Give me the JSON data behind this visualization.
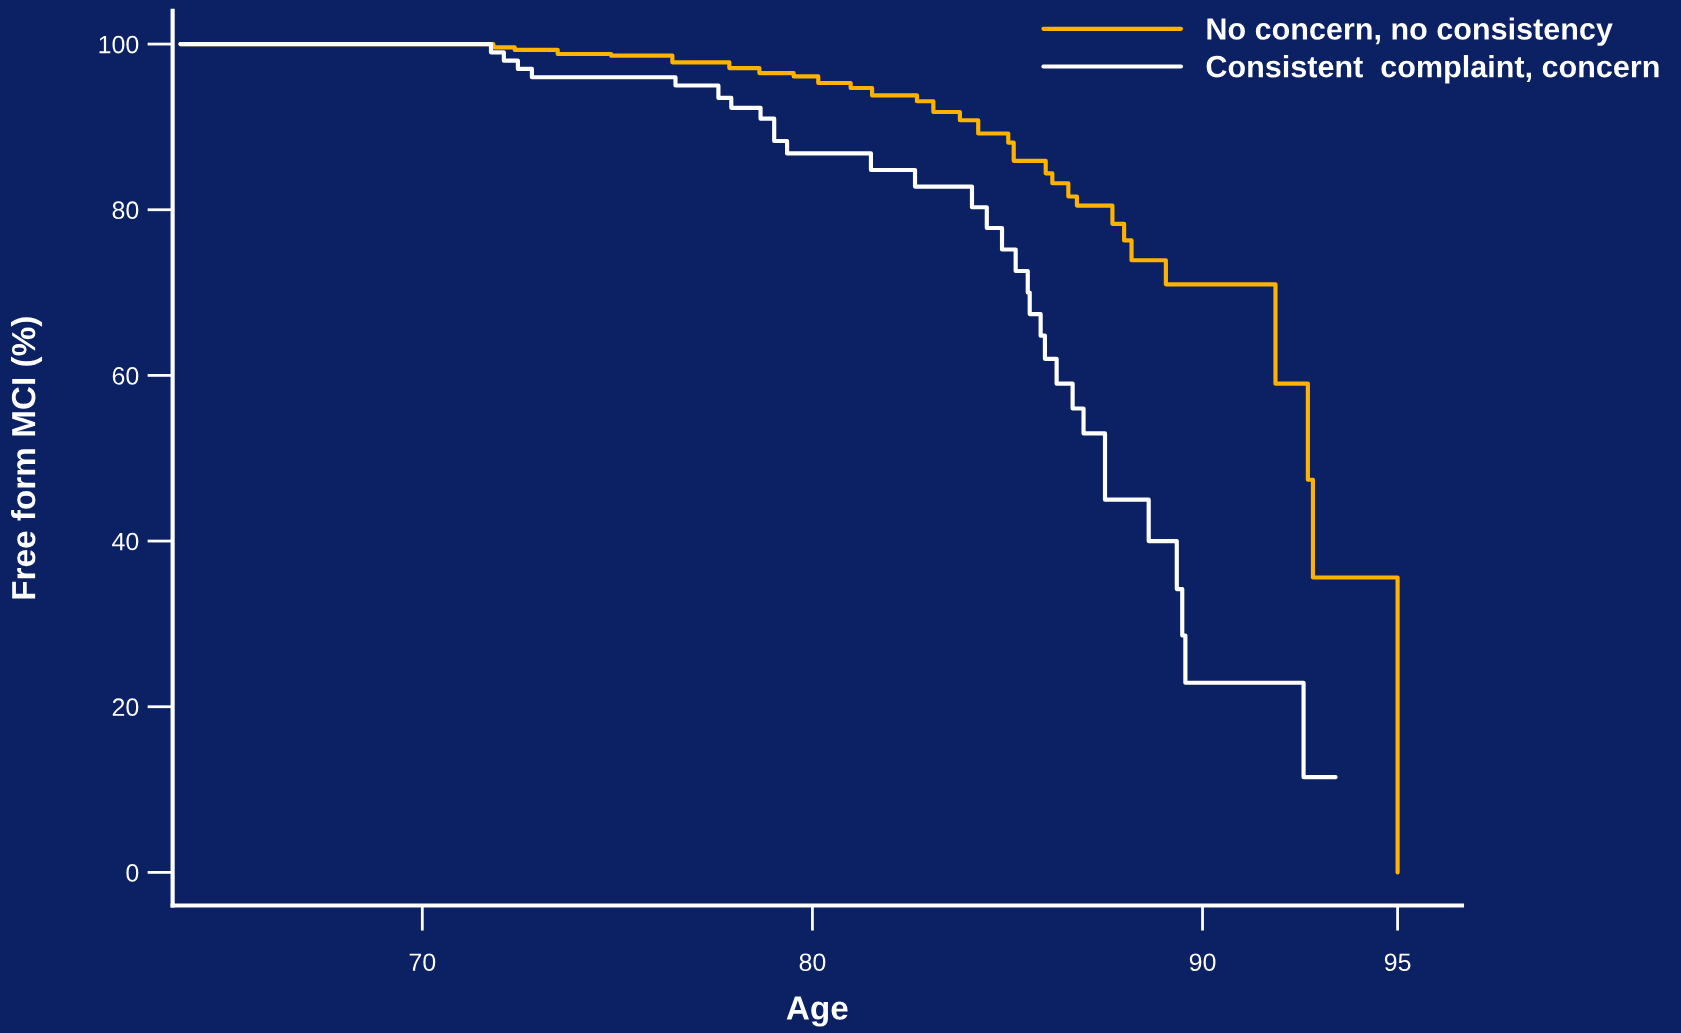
{
  "chart_data": {
    "type": "step",
    "xlabel": "Age",
    "ylabel": "Free form MCI (%)",
    "xlim": [
      63.6,
      96.65
    ],
    "xticks": [
      70,
      80,
      90,
      95
    ],
    "ylim": [
      -4,
      104
    ],
    "yticks": [
      0,
      20,
      40,
      60,
      80,
      100
    ],
    "grid": false,
    "legend": "top right",
    "marker": "none",
    "line_style": "solid",
    "series": [
      {
        "name": "No concern, no consistency",
        "color": "#ffb300",
        "x": [
          63.8,
          71.82,
          72.37,
          73.47,
          74.84,
          76.41,
          77.87,
          78.64,
          79.52,
          80.15,
          80.98,
          81.53,
          82.68,
          83.1,
          83.78,
          84.25,
          85.02,
          85.16,
          85.98,
          86.15,
          86.56,
          86.78,
          87.69,
          87.99,
          88.18,
          89.06,
          91.87,
          92.7,
          92.83,
          95.0
        ],
        "values": [
          100,
          99.6,
          99.3,
          98.8,
          98.6,
          97.8,
          97.1,
          96.5,
          96.1,
          95.3,
          94.7,
          93.8,
          93.1,
          91.8,
          90.8,
          89.2,
          88.1,
          85.9,
          84.4,
          83.2,
          81.6,
          80.5,
          78.3,
          76.3,
          73.9,
          71.0,
          59.0,
          47.4,
          35.6,
          0
        ]
      },
      {
        "name": "Consistent  complaint, concern",
        "color": "#ffffff",
        "x": [
          63.8,
          71.76,
          72.09,
          72.45,
          72.81,
          76.49,
          77.59,
          77.92,
          78.67,
          79.02,
          79.35,
          81.5,
          82.63,
          84.09,
          84.47,
          84.86,
          85.21,
          85.52,
          85.57,
          85.85,
          85.96,
          86.26,
          86.67,
          86.95,
          87.5,
          88.62,
          89.34,
          89.48,
          89.56,
          92.59,
          93.41
        ],
        "values": [
          100,
          99.0,
          98.0,
          97.0,
          96.0,
          95.0,
          93.5,
          92.3,
          91.0,
          88.3,
          86.8,
          84.8,
          82.8,
          80.3,
          77.8,
          75.2,
          72.6,
          70.0,
          67.4,
          64.8,
          62.0,
          59.0,
          56.0,
          53.0,
          45.0,
          40.0,
          34.2,
          28.6,
          22.9,
          11.5,
          11.5
        ]
      }
    ]
  }
}
